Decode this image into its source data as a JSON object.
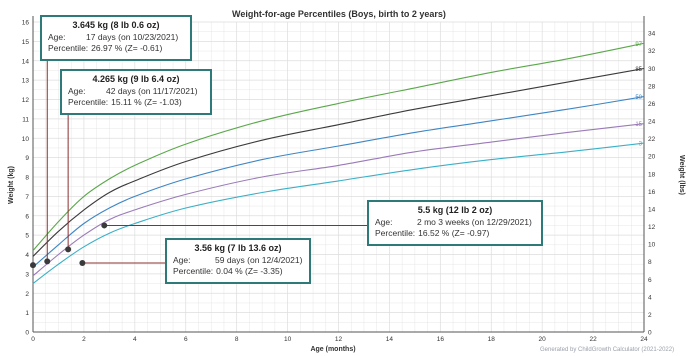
{
  "chart_data": {
    "type": "line",
    "title": "Weight-for-age Percentiles (Boys, birth to 2 years)",
    "xlabel": "Age (months)",
    "ylabel_left": "Weight (kg)",
    "ylabel_right": "Weight (lbs)",
    "xlim": [
      0,
      24
    ],
    "ylim": [
      0,
      16
    ],
    "ylim_right": [
      0,
      35.27
    ],
    "x_ticks": [
      0,
      2,
      4,
      6,
      8,
      10,
      12,
      14,
      16,
      18,
      20,
      22,
      24
    ],
    "y_ticks": [
      0,
      1,
      2,
      3,
      4,
      5,
      6,
      7,
      8,
      9,
      10,
      11,
      12,
      13,
      14,
      15,
      16
    ],
    "y_ticks_right": [
      0,
      2,
      4,
      6,
      8,
      10,
      12,
      14,
      16,
      18,
      20,
      22,
      24,
      26,
      28,
      30,
      32,
      34
    ],
    "grid": true,
    "series": [
      {
        "name": "97",
        "color": "#5aa84a",
        "x": [
          0,
          1,
          2,
          3,
          4,
          6,
          9,
          12,
          15,
          18,
          21,
          24
        ],
        "values": [
          4.2,
          5.7,
          7.0,
          7.9,
          8.6,
          9.7,
          10.9,
          11.8,
          12.6,
          13.4,
          14.1,
          14.9
        ]
      },
      {
        "name": "85",
        "color": "#3a3a3a",
        "x": [
          0,
          1,
          2,
          3,
          4,
          6,
          9,
          12,
          15,
          18,
          21,
          24
        ],
        "values": [
          3.9,
          5.2,
          6.3,
          7.2,
          7.8,
          8.8,
          9.9,
          10.7,
          11.5,
          12.2,
          12.9,
          13.6
        ]
      },
      {
        "name": "50",
        "color": "#3d86c6",
        "x": [
          0,
          1,
          2,
          3,
          4,
          6,
          9,
          12,
          15,
          18,
          21,
          24
        ],
        "values": [
          3.35,
          4.5,
          5.6,
          6.4,
          7.0,
          7.9,
          8.9,
          9.6,
          10.3,
          10.9,
          11.5,
          12.15
        ]
      },
      {
        "name": "15",
        "color": "#9a7ab8",
        "x": [
          0,
          1,
          2,
          3,
          4,
          6,
          9,
          12,
          15,
          18,
          21,
          24
        ],
        "values": [
          2.9,
          4.0,
          5.0,
          5.8,
          6.3,
          7.1,
          8.0,
          8.6,
          9.3,
          9.8,
          10.3,
          10.75
        ]
      },
      {
        "name": "3",
        "color": "#3ab0c8",
        "x": [
          0,
          1,
          2,
          3,
          4,
          6,
          9,
          12,
          15,
          18,
          21,
          24
        ],
        "values": [
          2.5,
          3.5,
          4.4,
          5.1,
          5.6,
          6.4,
          7.2,
          7.8,
          8.4,
          8.9,
          9.3,
          9.75
        ]
      }
    ],
    "measurements": [
      {
        "age_months": 0.0,
        "weight_kg": 3.45
      },
      {
        "age_months": 0.56,
        "weight_kg": 3.645
      },
      {
        "age_months": 1.38,
        "weight_kg": 4.265
      },
      {
        "age_months": 1.94,
        "weight_kg": 3.56
      },
      {
        "age_months": 2.8,
        "weight_kg": 5.5
      }
    ],
    "annotations": [
      {
        "weight": "3.645 kg (8 lb 0.6 oz)",
        "age_label": "Age:",
        "age": "17 days (on 10/23/2021)",
        "pct_label": "Percentile:",
        "percentile": "26.97 % (Z= -0.61)"
      },
      {
        "weight": "4.265 kg (9 lb 6.4 oz)",
        "age_label": "Age:",
        "age": "42 days (on 11/17/2021)",
        "pct_label": "Percentile:",
        "percentile": "15.11 % (Z= -1.03)"
      },
      {
        "weight": "5.5 kg (12 lb 2 oz)",
        "age_label": "Age:",
        "age": "2 mo 3 weeks (on 12/29/2021)",
        "pct_label": "Percentile:",
        "percentile": "16.52 % (Z= -0.97)"
      },
      {
        "weight": "3.56 kg (7 lb 13.6 oz)",
        "age_label": "Age:",
        "age": "59 days (on 12/4/2021)",
        "pct_label": "Percentile:",
        "percentile": "0.04 % (Z= -3.35)"
      }
    ],
    "colors": {
      "grid": "#dddddd",
      "axis": "#555555",
      "connector": "#8b2f2f",
      "marker": "#3a3a3a",
      "box_border": "#2d7a78"
    }
  },
  "footer": {
    "watermark": "Generated by ChildGrowth Calculator (2021-2022)"
  }
}
